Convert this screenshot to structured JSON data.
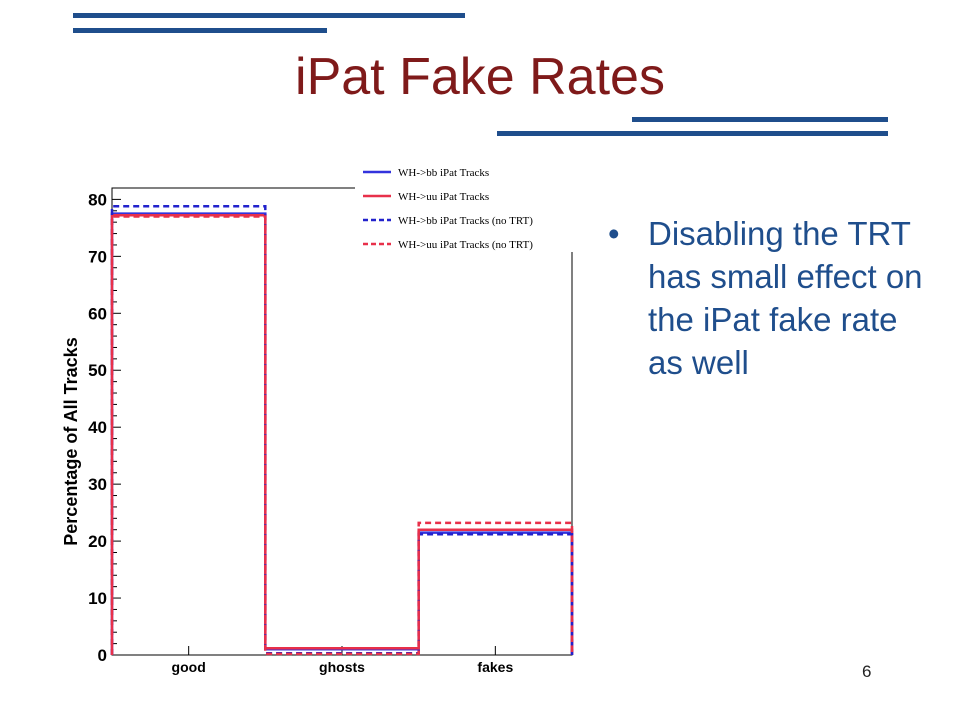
{
  "slide": {
    "title": "iPat Fake Rates",
    "bullet": "Disabling the TRT has small effect on the iPat fake rate as well",
    "page_number": "6",
    "colors": {
      "title": "#7f1a1a",
      "bullet": "#1f4e8c",
      "deco_lines": "#1f4e8c"
    }
  },
  "chart_data": {
    "type": "histogram",
    "categories": [
      "good",
      "ghosts",
      "fakes"
    ],
    "ylabel": "Percentage of All Tracks",
    "xlabel": "",
    "ylim": [
      0,
      82
    ],
    "yticks": [
      0,
      10,
      20,
      30,
      40,
      50,
      60,
      70,
      80
    ],
    "grid": false,
    "legend_position": "top-right",
    "series": [
      {
        "name": "WH->bb iPat Tracks",
        "values": [
          77.5,
          1.0,
          21.5
        ],
        "color": "#3333dd",
        "style": "solid"
      },
      {
        "name": "WH->uu iPat Tracks",
        "values": [
          77.2,
          1.2,
          22.0
        ],
        "color": "#e8304a",
        "style": "solid"
      },
      {
        "name": "WH->bb iPat Tracks (no TRT)",
        "values": [
          78.8,
          0.3,
          21.2
        ],
        "color": "#2222cc",
        "style": "dashed"
      },
      {
        "name": "WH->uu iPat Tracks (no TRT)",
        "values": [
          77.0,
          0.2,
          23.2
        ],
        "color": "#e8304a",
        "style": "dashed"
      }
    ]
  }
}
